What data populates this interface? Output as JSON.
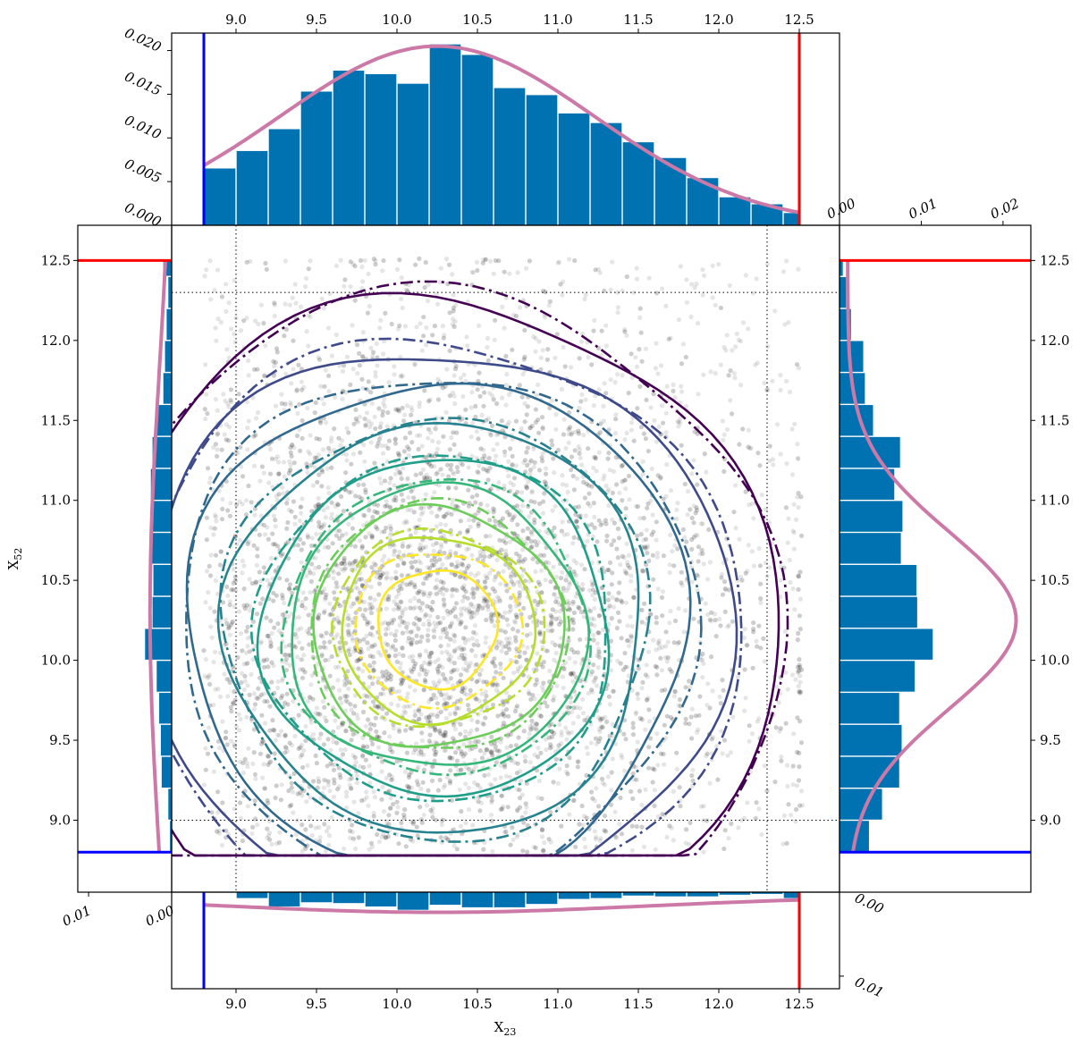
{
  "chart_data": [
    {
      "id": "main",
      "type": "scatter",
      "xlabel": "X",
      "xlabel_sub": "23",
      "ylabel": "X",
      "ylabel_sub": "52",
      "xlim": [
        8.6,
        12.75
      ],
      "ylim": [
        8.55,
        12.72
      ],
      "xticks": [
        "9.0",
        "9.5",
        "10.0",
        "10.5",
        "11.0",
        "11.5",
        "12.0",
        "12.5"
      ],
      "yticks": [
        "9.0",
        "9.5",
        "10.0",
        "10.5",
        "11.0",
        "11.5",
        "12.0",
        "12.5"
      ],
      "scatter_color": "#000000",
      "scatter_alpha": 0.1,
      "clip_value": 12.5,
      "dotted_guides": {
        "x": [
          9.0,
          12.3
        ],
        "y": [
          9.0,
          12.3
        ]
      },
      "blob_center": [
        10.25,
        10.2
      ],
      "contours": {
        "center": [
          10.25,
          10.2
        ],
        "styles": [
          "solid",
          "dashdot"
        ],
        "levels": [
          {
            "color": "#fde725",
            "rx_solid": 0.37,
            "ry_solid": 0.37,
            "rx_dash": 0.52,
            "ry_dash": 0.48
          },
          {
            "color": "#b5de2b",
            "rx_solid": 0.6,
            "ry_solid": 0.58,
            "rx_dash": 0.66,
            "ry_dash": 0.61
          },
          {
            "color": "#6ccd5a",
            "rx_solid": 0.78,
            "ry_solid": 0.75,
            "rx_dash": 0.8,
            "ry_dash": 0.78
          },
          {
            "color": "#35b779",
            "rx_solid": 0.92,
            "ry_solid": 0.88,
            "rx_dash": 0.95,
            "ry_dash": 0.92
          },
          {
            "color": "#1f9e89",
            "rx_solid": 1.08,
            "ry_solid": 1.05,
            "rx_dash": 1.1,
            "ry_dash": 1.08
          },
          {
            "color": "#26828e",
            "rx_solid": 1.3,
            "ry_solid": 1.28,
            "rx_dash": 1.32,
            "ry_dash": 1.32
          },
          {
            "color": "#31688e",
            "rx_solid": 1.55,
            "ry_solid": 1.55,
            "rx_dash": 1.6,
            "ry_dash": 1.6
          },
          {
            "color": "#3e4a89",
            "rx_solid": 1.82,
            "ry_solid": 1.75,
            "rx_dash": 1.87,
            "ry_dash": 1.8
          },
          {
            "color": "#440154",
            "rx_solid": 2.1,
            "ry_solid": 2.05,
            "rx_dash": 2.13,
            "ry_dash": 2.08
          }
        ]
      }
    },
    {
      "id": "top-marginal",
      "type": "bar",
      "orientation": "vertical",
      "bar_color": "#0072b2",
      "edges": [
        8.8,
        9.0,
        9.2,
        9.4,
        9.6,
        9.8,
        10.0,
        10.2,
        10.4,
        10.6,
        10.8,
        11.0,
        11.2,
        11.4,
        11.6,
        11.8,
        12.0,
        12.2,
        12.4,
        12.5
      ],
      "values": [
        0.0065,
        0.0085,
        0.011,
        0.0153,
        0.0177,
        0.0173,
        0.0162,
        0.0207,
        0.0195,
        0.0157,
        0.0149,
        0.0128,
        0.0117,
        0.0095,
        0.0077,
        0.0054,
        0.0032,
        0.0024,
        0.0014
      ],
      "ylim": [
        0,
        0.022
      ],
      "yticks": [
        "0.000",
        "0.005",
        "0.010",
        "0.015",
        "0.020"
      ],
      "kde_color": "#cc79a7",
      "kde": {
        "mean": 10.25,
        "sd": 0.98,
        "scale": 0.0205
      },
      "lines": [
        {
          "x": 8.8,
          "color": "#0000ff"
        },
        {
          "x": 12.5,
          "color": "#ff0000"
        }
      ]
    },
    {
      "id": "right-marginal",
      "type": "bar",
      "orientation": "horizontal",
      "bar_color": "#0072b2",
      "edges": [
        8.8,
        9.0,
        9.2,
        9.4,
        9.6,
        9.8,
        10.0,
        10.2,
        10.4,
        10.6,
        10.8,
        11.0,
        11.2,
        11.4,
        11.6,
        11.8,
        12.0,
        12.2,
        12.4,
        12.5
      ],
      "values": [
        0.0036,
        0.0052,
        0.0073,
        0.0076,
        0.0073,
        0.0092,
        0.0114,
        0.0095,
        0.0094,
        0.0075,
        0.0077,
        0.0067,
        0.0074,
        0.0041,
        0.0031,
        0.0029,
        0.0014,
        0.0008,
        0.0004
      ],
      "xlim": [
        0,
        0.0234
      ],
      "xticks": [
        "0.00",
        "0.01",
        "0.02"
      ],
      "kde_color": "#cc79a7",
      "kde": {
        "mean": 10.25,
        "sd": 0.55,
        "scale": 0.0206
      },
      "lines": [
        {
          "y": 12.5,
          "color": "#ff0000"
        },
        {
          "y": 8.8,
          "color": "#0000ff"
        }
      ],
      "ytick_labels": [
        "9.0",
        "9.5",
        "10.0",
        "10.5",
        "11.0",
        "11.5",
        "12.0",
        "12.5"
      ]
    },
    {
      "id": "left-marginal",
      "type": "bar",
      "orientation": "horizontal",
      "bar_color": "#0072b2",
      "edges": [
        8.8,
        9.0,
        9.2,
        9.4,
        9.6,
        9.8,
        10.0,
        10.2,
        10.4,
        10.6,
        10.8,
        11.0,
        11.2,
        11.4,
        11.6,
        11.8,
        12.0,
        12.2,
        12.4,
        12.5
      ],
      "values": [
        0.0002,
        0.0004,
        0.0012,
        0.0013,
        0.0015,
        0.0018,
        0.0032,
        0.0023,
        0.0022,
        0.0024,
        0.0023,
        0.0025,
        0.0023,
        0.0018,
        0.001,
        0.0008,
        0.0006,
        0.0004,
        0.001
      ],
      "xlim": [
        0,
        0.0113
      ],
      "xticks": [
        "0.01",
        "0.00"
      ],
      "kde_color": "#cc79a7",
      "kde": {
        "mean": 10.3,
        "sd": 1.5,
        "scale": 0.0028
      },
      "lines": [
        {
          "y": 12.5,
          "color": "#ff0000"
        },
        {
          "y": 8.8,
          "color": "#0000ff"
        }
      ]
    },
    {
      "id": "bottom-marginal",
      "type": "bar",
      "orientation": "vertical",
      "bar_color": "#0072b2",
      "edges": [
        8.8,
        9.0,
        9.2,
        9.4,
        9.6,
        9.8,
        10.0,
        10.2,
        10.4,
        10.6,
        10.8,
        11.0,
        11.2,
        11.4,
        11.6,
        11.8,
        12.0,
        12.2,
        12.4,
        12.5
      ],
      "values": [
        0.0,
        0.0007,
        0.0017,
        0.0012,
        0.0013,
        0.0017,
        0.0021,
        0.0015,
        0.0018,
        0.0018,
        0.0014,
        0.0008,
        0.0007,
        0.0004,
        0.0005,
        0.0005,
        0.0003,
        0.0002,
        0.0007
      ],
      "ylim": [
        0,
        0.0115
      ],
      "yticks": [
        "0.00",
        "0.01"
      ],
      "kde_color": "#cc79a7",
      "kde": {
        "mean": 10.25,
        "sd": 1.3,
        "scale": 0.0019
      },
      "lines": [
        {
          "x": 8.8,
          "color": "#0000ff"
        },
        {
          "x": 12.5,
          "color": "#ff0000"
        }
      ],
      "xtick_labels": [
        "9.0",
        "9.5",
        "10.0",
        "10.5",
        "11.0",
        "11.5",
        "12.0",
        "12.5"
      ]
    }
  ]
}
